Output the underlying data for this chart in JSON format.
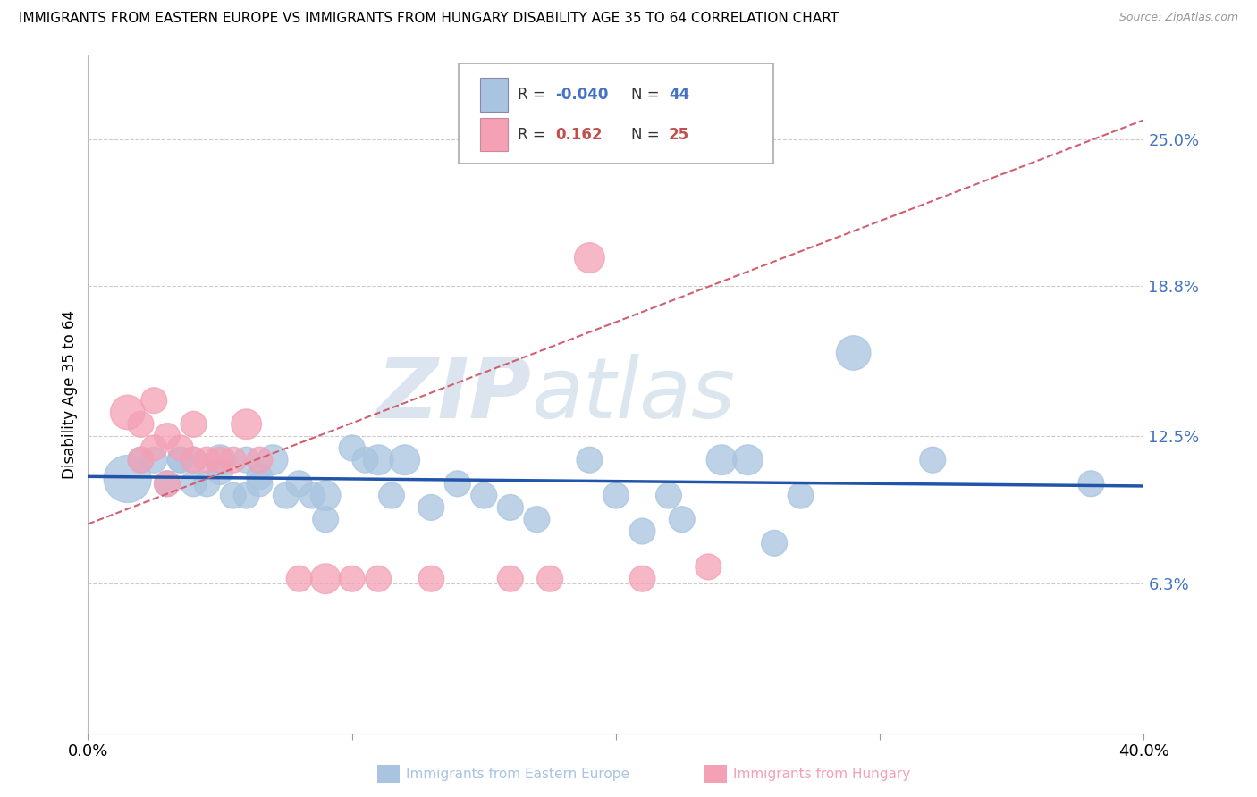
{
  "title": "IMMIGRANTS FROM EASTERN EUROPE VS IMMIGRANTS FROM HUNGARY DISABILITY AGE 35 TO 64 CORRELATION CHART",
  "source": "Source: ZipAtlas.com",
  "ylabel": "Disability Age 35 to 64",
  "xlim": [
    0.0,
    0.4
  ],
  "ylim": [
    0.0,
    0.285
  ],
  "ytick_labels": [
    "6.3%",
    "12.5%",
    "18.8%",
    "25.0%"
  ],
  "ytick_positions": [
    0.063,
    0.125,
    0.188,
    0.25
  ],
  "blue_color": "#a8c4e0",
  "pink_color": "#f4a0b5",
  "blue_line_color": "#2255aa",
  "pink_line_color": "#d06070",
  "blue_r": -0.04,
  "blue_n": 44,
  "pink_r": 0.162,
  "pink_n": 25,
  "blue_x": [
    0.015,
    0.02,
    0.025,
    0.03,
    0.035,
    0.035,
    0.04,
    0.04,
    0.045,
    0.05,
    0.05,
    0.055,
    0.06,
    0.06,
    0.065,
    0.065,
    0.07,
    0.075,
    0.08,
    0.085,
    0.09,
    0.09,
    0.1,
    0.105,
    0.11,
    0.115,
    0.12,
    0.13,
    0.14,
    0.15,
    0.16,
    0.17,
    0.19,
    0.2,
    0.21,
    0.22,
    0.225,
    0.24,
    0.25,
    0.26,
    0.27,
    0.29,
    0.32,
    0.38
  ],
  "blue_y": [
    0.107,
    0.115,
    0.115,
    0.105,
    0.115,
    0.115,
    0.105,
    0.115,
    0.105,
    0.11,
    0.115,
    0.1,
    0.1,
    0.115,
    0.108,
    0.105,
    0.115,
    0.1,
    0.105,
    0.1,
    0.1,
    0.09,
    0.12,
    0.115,
    0.115,
    0.1,
    0.115,
    0.095,
    0.105,
    0.1,
    0.095,
    0.09,
    0.115,
    0.1,
    0.085,
    0.1,
    0.09,
    0.115,
    0.115,
    0.08,
    0.1,
    0.16,
    0.115,
    0.105
  ],
  "blue_sizes": [
    22,
    12,
    12,
    12,
    12,
    12,
    12,
    12,
    12,
    12,
    14,
    12,
    12,
    12,
    12,
    12,
    14,
    12,
    12,
    12,
    14,
    12,
    12,
    12,
    14,
    12,
    14,
    12,
    12,
    12,
    12,
    12,
    12,
    12,
    12,
    12,
    12,
    14,
    14,
    12,
    12,
    16,
    12,
    12
  ],
  "pink_x": [
    0.015,
    0.02,
    0.02,
    0.025,
    0.025,
    0.03,
    0.03,
    0.035,
    0.04,
    0.04,
    0.045,
    0.05,
    0.055,
    0.06,
    0.065,
    0.08,
    0.09,
    0.1,
    0.11,
    0.13,
    0.16,
    0.175,
    0.19,
    0.21,
    0.235
  ],
  "pink_y": [
    0.135,
    0.13,
    0.115,
    0.14,
    0.12,
    0.125,
    0.105,
    0.12,
    0.115,
    0.13,
    0.115,
    0.115,
    0.115,
    0.13,
    0.115,
    0.065,
    0.065,
    0.065,
    0.065,
    0.065,
    0.065,
    0.065,
    0.2,
    0.065,
    0.07
  ],
  "pink_sizes": [
    16,
    12,
    12,
    12,
    12,
    12,
    12,
    12,
    12,
    12,
    12,
    12,
    12,
    14,
    12,
    12,
    14,
    12,
    12,
    12,
    12,
    12,
    14,
    12,
    12
  ],
  "blue_trend_x0": 0.0,
  "blue_trend_y0": 0.108,
  "blue_trend_x1": 0.4,
  "blue_trend_y1": 0.104,
  "pink_trend_x0": 0.0,
  "pink_trend_y0": 0.088,
  "pink_trend_x1": 0.4,
  "pink_trend_y1": 0.258
}
